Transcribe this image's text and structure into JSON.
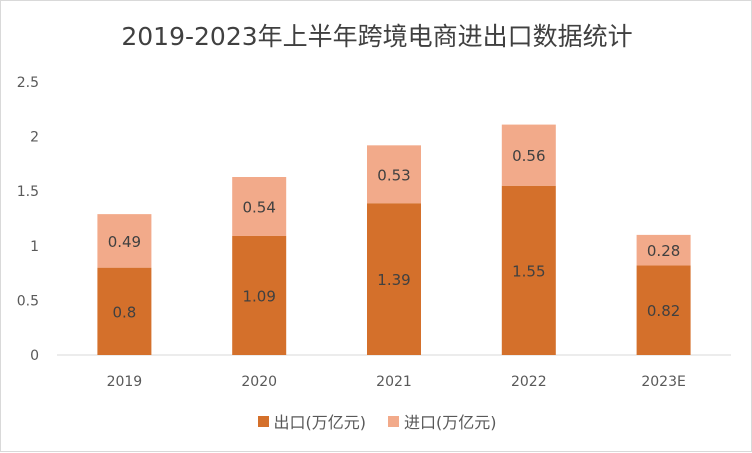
{
  "chart_data": {
    "type": "bar",
    "stacked": true,
    "title": "2019-2023年上半年跨境电商进出口数据统计",
    "categories": [
      "2019",
      "2020",
      "2021",
      "2022",
      "2023E"
    ],
    "series": [
      {
        "name": "出口(万亿元)",
        "values": [
          0.8,
          1.09,
          1.39,
          1.55,
          0.82
        ],
        "color": "#D4702B"
      },
      {
        "name": "进口(万亿元)",
        "values": [
          0.49,
          0.54,
          0.53,
          0.56,
          0.28
        ],
        "color": "#F2AA8A"
      }
    ],
    "ylim": [
      0,
      2.5
    ],
    "yticks": [
      "0",
      "0.5",
      "1",
      "1.5",
      "2",
      "2.5"
    ],
    "grid": false,
    "legend": "bottom"
  }
}
